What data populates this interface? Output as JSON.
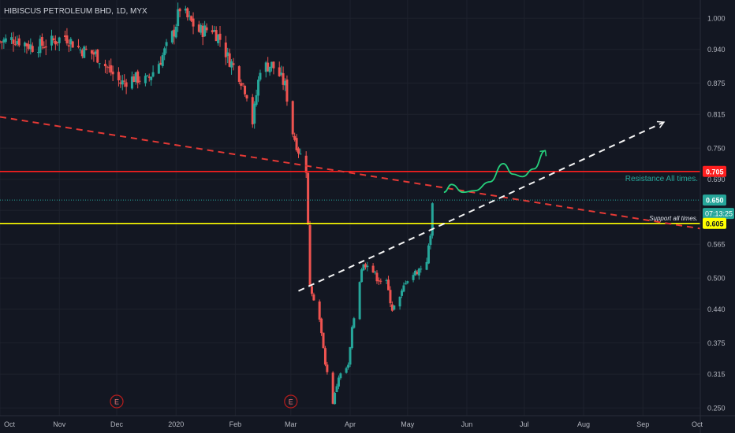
{
  "symbol_title": "HIBISCUS PETROLEUM BHD, 1D, MYX",
  "colors": {
    "background": "#131722",
    "grid": "#1e222d",
    "up": "#26a69a",
    "down": "#ef5350",
    "resistance": "#ff1f1f",
    "support": "#ffff00",
    "trend_down": "#e53935",
    "trend_up": "#f5f5f5",
    "projection": "#26d07c",
    "axis_text": "#b2b5be"
  },
  "chart_data": {
    "type": "candlestick",
    "ylim": [
      0.235,
      1.035
    ],
    "x_range": [
      "2019-10-01",
      "2020-10-01"
    ],
    "yticks": [
      1.0,
      0.94,
      0.875,
      0.815,
      0.75,
      0.69,
      0.63,
      0.565,
      0.5,
      0.44,
      0.375,
      0.315,
      0.25
    ],
    "ytick_labels": [
      "1.000",
      "0.940",
      "0.875",
      "0.815",
      "0.750",
      "0.690",
      "0.630",
      "0.565",
      "0.500",
      "0.440",
      "0.375",
      "0.315",
      "0.250"
    ],
    "xticks": [
      {
        "date": "2019-10-01",
        "label": "Oct"
      },
      {
        "date": "2019-11-01",
        "label": "Nov"
      },
      {
        "date": "2019-12-01",
        "label": "Dec"
      },
      {
        "date": "2020-01-01",
        "label": "2020"
      },
      {
        "date": "2020-02-01",
        "label": "Feb"
      },
      {
        "date": "2020-03-01",
        "label": "Mar"
      },
      {
        "date": "2020-04-01",
        "label": "Apr"
      },
      {
        "date": "2020-05-01",
        "label": "May"
      },
      {
        "date": "2020-06-01",
        "label": "Jun"
      },
      {
        "date": "2020-07-01",
        "label": "Jul"
      },
      {
        "date": "2020-08-01",
        "label": "Aug"
      },
      {
        "date": "2020-09-01",
        "label": "Sep"
      },
      {
        "date": "2020-10-01",
        "label": "Oct"
      }
    ],
    "close_path": [
      [
        "2019-10-01",
        0.955
      ],
      [
        "2019-10-09",
        0.96
      ],
      [
        "2019-10-18",
        0.945
      ],
      [
        "2019-10-25",
        0.95
      ],
      [
        "2019-11-04",
        0.965
      ],
      [
        "2019-11-12",
        0.94
      ],
      [
        "2019-11-20",
        0.93
      ],
      [
        "2019-11-26",
        0.905
      ],
      [
        "2019-12-03",
        0.875
      ],
      [
        "2019-12-10",
        0.885
      ],
      [
        "2019-12-17",
        0.88
      ],
      [
        "2019-12-24",
        0.92
      ],
      [
        "2019-12-31",
        0.975
      ],
      [
        "2020-01-03",
        1.02
      ],
      [
        "2020-01-07",
        1.0
      ],
      [
        "2020-01-13",
        0.975
      ],
      [
        "2020-01-20",
        0.98
      ],
      [
        "2020-01-24",
        0.96
      ],
      [
        "2020-01-28",
        0.925
      ],
      [
        "2020-02-03",
        0.89
      ],
      [
        "2020-02-07",
        0.855
      ],
      [
        "2020-02-10",
        0.8
      ],
      [
        "2020-02-14",
        0.905
      ],
      [
        "2020-02-20",
        0.91
      ],
      [
        "2020-02-24",
        0.89
      ],
      [
        "2020-02-27",
        0.87
      ],
      [
        "2020-03-02",
        0.78
      ],
      [
        "2020-03-05",
        0.745
      ],
      [
        "2020-03-09",
        0.71
      ],
      [
        "2020-03-11",
        0.49
      ],
      [
        "2020-03-16",
        0.42
      ],
      [
        "2020-03-19",
        0.335
      ],
      [
        "2020-03-23",
        0.26
      ],
      [
        "2020-03-26",
        0.31
      ],
      [
        "2020-03-31",
        0.33
      ],
      [
        "2020-04-02",
        0.4
      ],
      [
        "2020-04-07",
        0.52
      ],
      [
        "2020-04-10",
        0.53
      ],
      [
        "2020-04-15",
        0.5
      ],
      [
        "2020-04-20",
        0.49
      ],
      [
        "2020-04-23",
        0.44
      ],
      [
        "2020-04-27",
        0.46
      ],
      [
        "2020-04-30",
        0.495
      ],
      [
        "2020-05-05",
        0.51
      ],
      [
        "2020-05-08",
        0.52
      ],
      [
        "2020-05-11",
        0.535
      ],
      [
        "2020-05-13",
        0.58
      ],
      [
        "2020-05-14",
        0.65
      ]
    ],
    "highlighted_dates": [
      "2020-03-10",
      "2020-03-20",
      "2020-05-14"
    ],
    "horizontal_lines": [
      {
        "name": "resistance",
        "value": 0.705,
        "label": "Resistance All times.",
        "price_tag": "0.705"
      },
      {
        "name": "support",
        "value": 0.605,
        "label": "Support all times.",
        "price_tag": "0.605"
      }
    ],
    "last_price": {
      "value": 0.65,
      "label": "0.650",
      "countdown": "07:13:25"
    },
    "trendlines": [
      {
        "name": "descending",
        "from": [
          "2019-10-01",
          0.81
        ],
        "to": [
          "2020-10-01",
          0.595
        ]
      },
      {
        "name": "ascending",
        "from": [
          "2020-03-05",
          0.475
        ],
        "to": [
          "2020-09-12",
          0.8
        ],
        "arrow": true
      }
    ],
    "projection_path": [
      [
        "2020-05-20",
        0.665
      ],
      [
        "2020-05-24",
        0.68
      ],
      [
        "2020-05-30",
        0.665
      ],
      [
        "2020-06-05",
        0.668
      ],
      [
        "2020-06-13",
        0.685
      ],
      [
        "2020-06-20",
        0.72
      ],
      [
        "2020-06-25",
        0.7
      ],
      [
        "2020-06-30",
        0.695
      ],
      [
        "2020-07-06",
        0.71
      ],
      [
        "2020-07-12",
        0.745
      ]
    ],
    "event_markers": [
      {
        "date": "2019-12-01",
        "label": "E"
      },
      {
        "date": "2020-03-01",
        "label": "E"
      }
    ]
  }
}
